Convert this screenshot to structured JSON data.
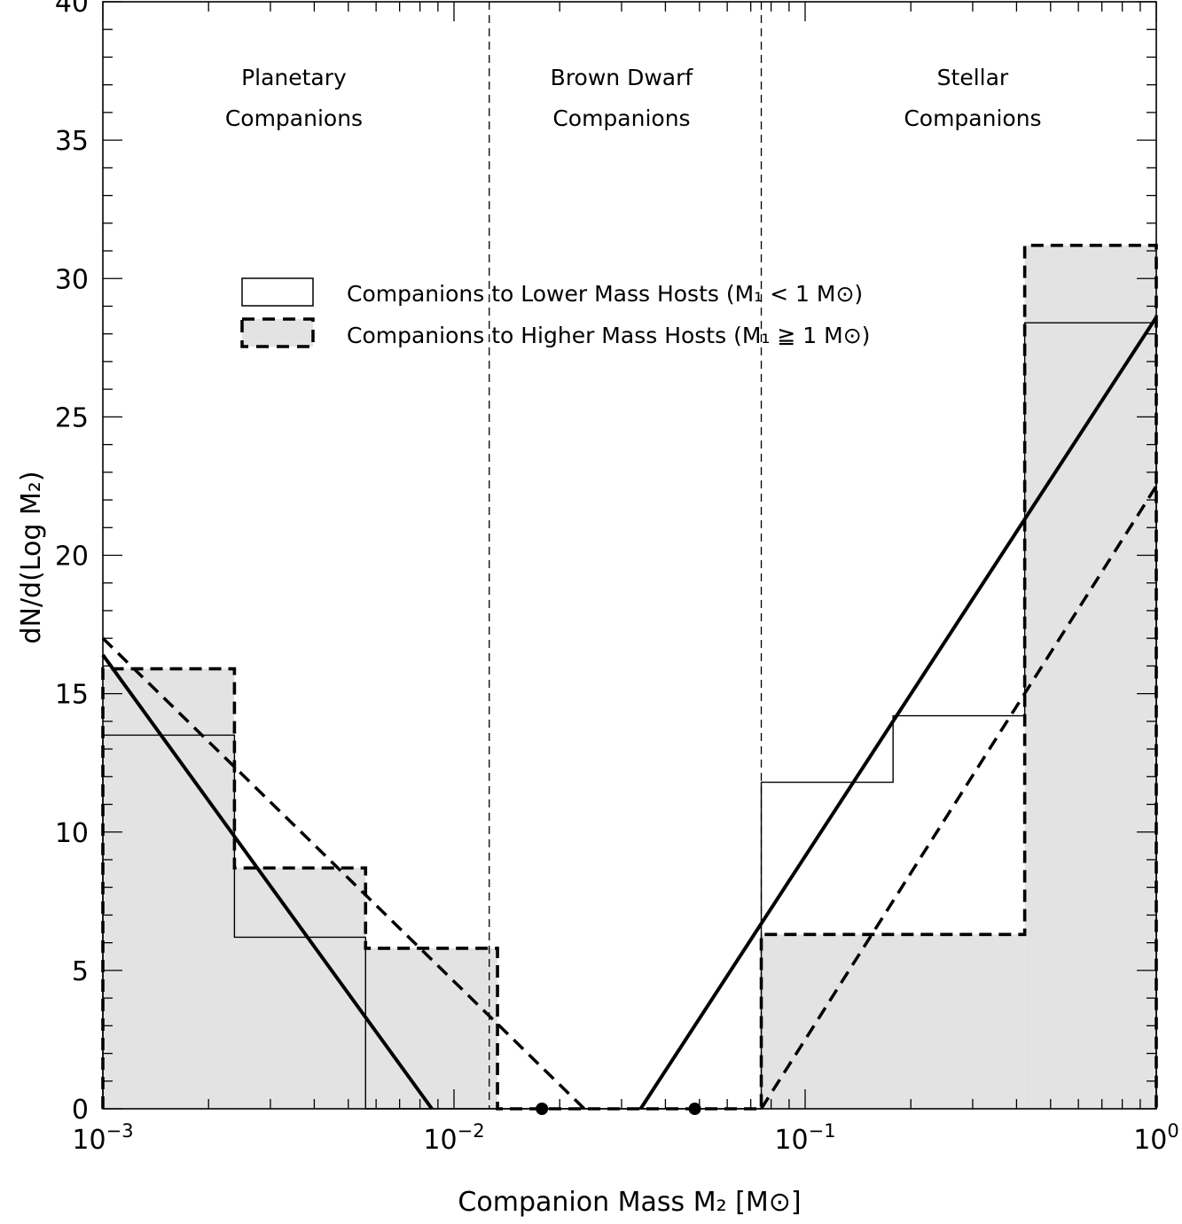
{
  "chart_data": {
    "type": "bar",
    "xscale": "log",
    "xlim": [
      0.001,
      1
    ],
    "ylim": [
      0,
      40
    ],
    "grid": false,
    "xlabel": "Companion Mass M₂ [M⊙]",
    "ylabel": "dN/d(Log M₂)",
    "x_ticks": [
      {
        "value": 0.001,
        "base": "10",
        "exp": "−3"
      },
      {
        "value": 0.01,
        "base": "10",
        "exp": "−2"
      },
      {
        "value": 0.1,
        "base": "10",
        "exp": "−1"
      },
      {
        "value": 1,
        "base": "10",
        "exp": "0"
      }
    ],
    "y_ticks": [
      0,
      5,
      10,
      15,
      20,
      25,
      30,
      35,
      40
    ],
    "region_boundaries": [
      0.0126,
      0.075
    ],
    "regions": [
      {
        "line1": "Planetary",
        "line2": "Companions",
        "x": 0.0035
      },
      {
        "line1": "Brown Dwarf",
        "line2": "Companions",
        "x": 0.03
      },
      {
        "line1": "Stellar",
        "line2": "Companions",
        "x": 0.3
      }
    ],
    "legend": {
      "placement": "upper-center",
      "entries": [
        {
          "label": "Companions to Lower Mass Hosts (M₁ < 1 M⊙)",
          "style": "solid"
        },
        {
          "label": "Companions to Higher Mass Hosts (M₁ ≧ 1 M⊙)",
          "style": "dashed-filled"
        }
      ]
    },
    "series": [
      {
        "name": "Companions to Lower Mass Hosts (M₁ < 1 M⊙)",
        "kind": "histogram",
        "style": "solid",
        "bins": [
          {
            "x0": 0.001,
            "x1": 0.00237,
            "y": 13.5
          },
          {
            "x0": 0.00237,
            "x1": 0.0056,
            "y": 6.2
          },
          {
            "x0": 0.0056,
            "x1": 0.075,
            "y": 0
          },
          {
            "x0": 0.075,
            "x1": 0.178,
            "y": 11.8
          },
          {
            "x0": 0.178,
            "x1": 0.422,
            "y": 14.2
          },
          {
            "x0": 0.422,
            "x1": 1,
            "y": 28.4
          }
        ]
      },
      {
        "name": "Companions to Higher Mass Hosts (M₁ ≧ 1 M⊙)",
        "kind": "histogram",
        "style": "dashed-filled",
        "bins": [
          {
            "x0": 0.001,
            "x1": 0.00237,
            "y": 15.9
          },
          {
            "x0": 0.00237,
            "x1": 0.0056,
            "y": 8.7
          },
          {
            "x0": 0.0056,
            "x1": 0.0133,
            "y": 5.8
          },
          {
            "x0": 0.0133,
            "x1": 0.075,
            "y": 0
          },
          {
            "x0": 0.075,
            "x1": 0.422,
            "y": 6.3
          },
          {
            "x0": 0.422,
            "x1": 1,
            "y": 31.2
          }
        ]
      },
      {
        "kind": "fit-line",
        "style": "solid",
        "segments": [
          {
            "x0": 0.001,
            "y0": 16.4,
            "x1": 0.00865,
            "y1": 0
          },
          {
            "x0": 0.034,
            "y0": 0,
            "x1": 1,
            "y1": 28.6
          }
        ]
      },
      {
        "kind": "fit-line",
        "style": "dashed",
        "segments": [
          {
            "x0": 0.001,
            "y0": 17.0,
            "x1": 0.0235,
            "y1": 0
          },
          {
            "x0": 0.075,
            "y0": 0,
            "x1": 1,
            "y1": 22.5
          }
        ]
      },
      {
        "kind": "points",
        "points": [
          {
            "x": 0.0178,
            "y": 0
          },
          {
            "x": 0.0485,
            "y": 0
          }
        ]
      }
    ]
  }
}
